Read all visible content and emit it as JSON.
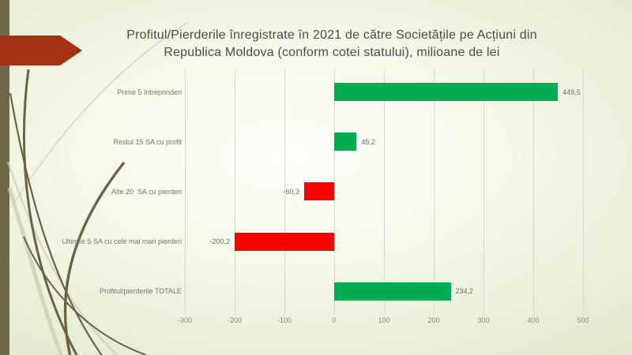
{
  "slide": {
    "title_line1": "Profitul/Pierderile înregistrate în 2021 de către Societățile pe Acțiuni din",
    "title_line2": "Republica Moldova (conform cotei statului), milioane de lei"
  },
  "colors": {
    "positive_bar": "#00AC52",
    "negative_bar": "#FF0000",
    "accent_arrow": "#A33112",
    "left_stripe": "#6E6748",
    "gridline": "#D9DACD",
    "title_text": "#4B4B4B",
    "category_text": "#77776B",
    "value_text": "#6F6F66",
    "tick_text": "#8A8A7E",
    "deco_dark": "#6B6347",
    "deco_light": "#CDCFAE",
    "deco_faint": "#D8D9C0"
  },
  "chart_data": {
    "type": "bar",
    "orientation": "horizontal",
    "title": "Profitul/Pierderile înregistrate în 2021 de către Societățile pe Acțiuni din Republica Moldova (conform cotei statului), milioane de lei",
    "unit": "milioane de lei",
    "categories": [
      "Prime 5 întreprinderi",
      "Restul 15 SA cu profit",
      "Alte 20  SA cu pierderi",
      "Ultimile 5 SA cu cele mai mari pierderi",
      "Profitul/pierderile TOTALE"
    ],
    "values": [
      449.5,
      45.2,
      -60.3,
      -200.2,
      234.2
    ],
    "value_labels": [
      "449,5",
      "45,2",
      "-60,3",
      "-200,2",
      "234,2"
    ],
    "xlim": [
      -300,
      500
    ],
    "x_ticks": [
      -300,
      -200,
      -100,
      0,
      100,
      200,
      300,
      400,
      500
    ],
    "x_tick_labels": [
      "-300",
      "-200",
      "-100",
      "0",
      "100",
      "200",
      "300",
      "400",
      "500"
    ],
    "grid": "vertical",
    "legend": "none"
  }
}
